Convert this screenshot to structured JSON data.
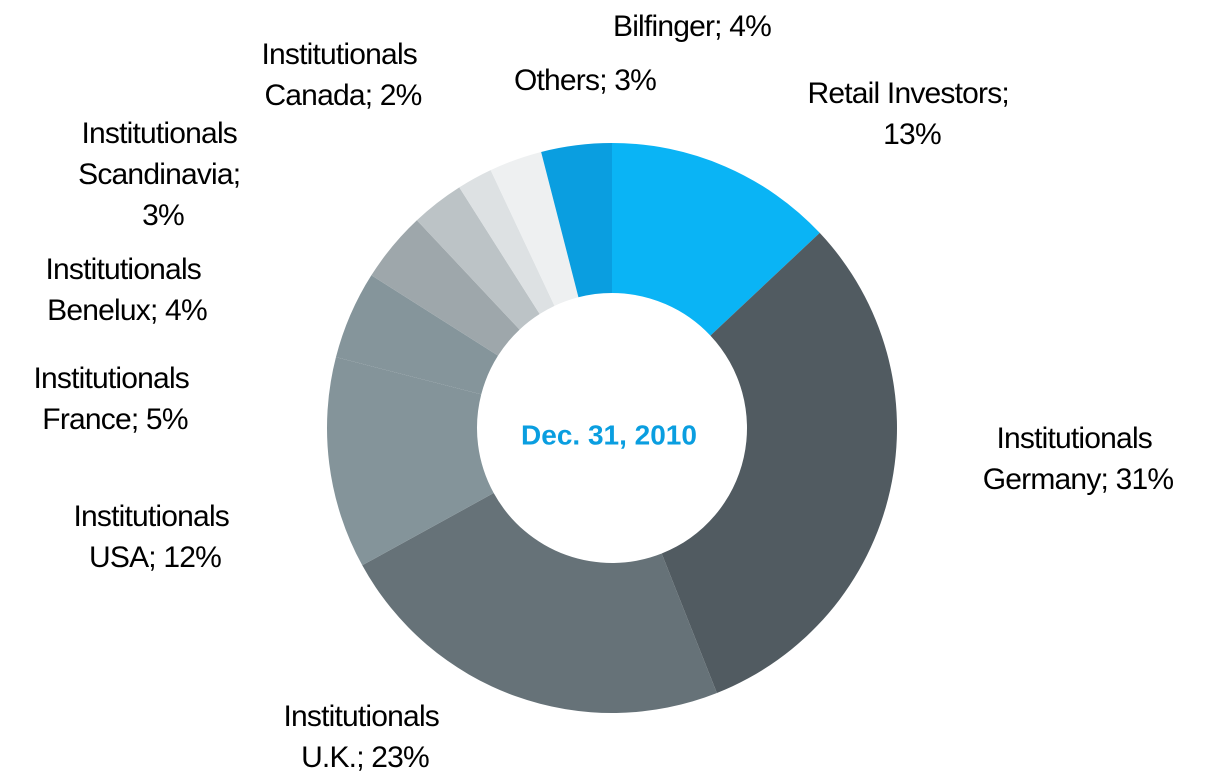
{
  "chart_data": {
    "type": "donut",
    "center_label": "Dec. 31, 2010",
    "categories": [
      "Retail Investors",
      "Institutionals Germany",
      "Institutionals U.K.",
      "Institutionals USA",
      "Institutionals France",
      "Institutionals Benelux",
      "Institutionals Scandinavia",
      "Institutionals Canada",
      "Others",
      "Bilfinger"
    ],
    "values": [
      13,
      31,
      23,
      12,
      5,
      4,
      3,
      2,
      3,
      4
    ],
    "value_labels": [
      "Retail Investors; 13%",
      "Institutionals Germany; 31%",
      "Institutionals U.K.; 23%",
      "Institutionals USA; 12%",
      "Institutionals France; 5%",
      "Institutionals Benelux; 4%",
      "Institutionals Scandinavia; 3%",
      "Institutionals Canada; 2%",
      "Others; 3%",
      "Bilfinger; 4%"
    ],
    "colors": [
      "#0ab4f5",
      "#515b61",
      "#667278",
      "#84949a",
      "#85959b",
      "#9ea7ab",
      "#bcc3c6",
      "#dde1e3",
      "#eef0f1",
      "#0a9ee0"
    ]
  }
}
